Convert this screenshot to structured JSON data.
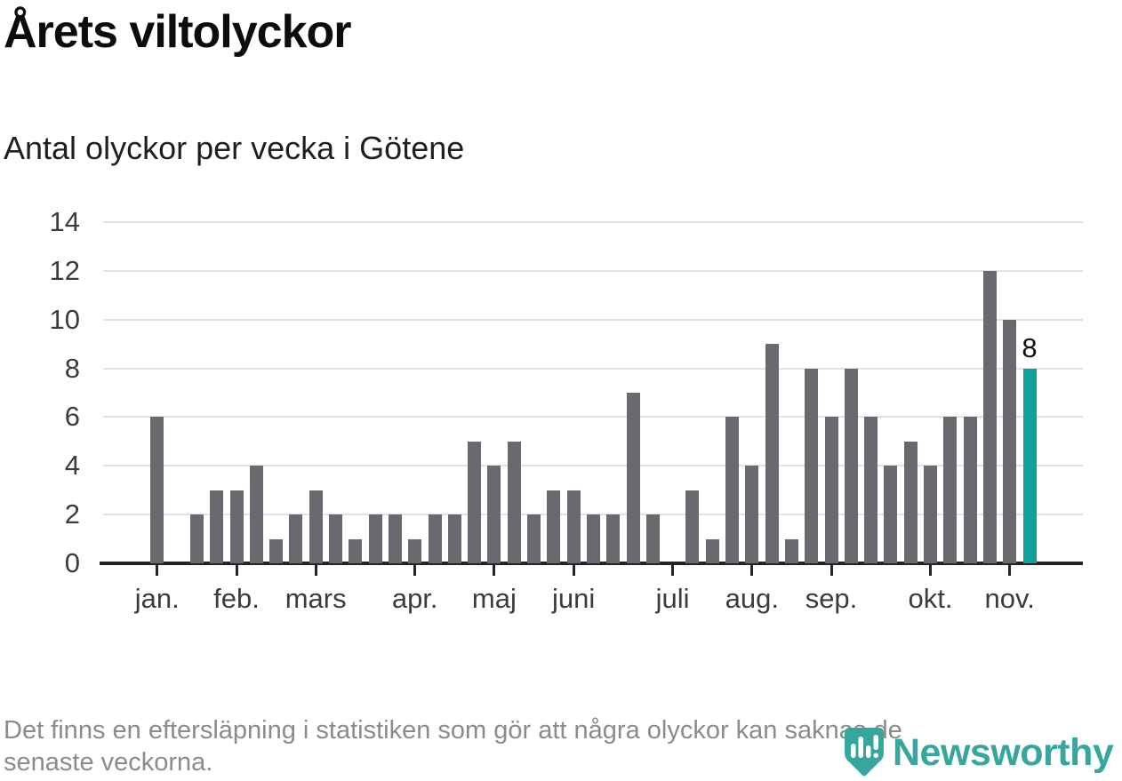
{
  "header": {
    "title": "Årets viltolyckor",
    "subtitle": "Antal olyckor per vecka i Götene"
  },
  "footer": {
    "note": "Det finns en eftersläpning i statistiken som gör att några olyckor kan saknas de\nsenaste veckorna."
  },
  "branding": {
    "name": "Newsworthy",
    "logo_icon": "newsworthy-pin-barchart-icon",
    "brand_color": "#35a79c"
  },
  "chart_data": {
    "type": "bar",
    "title": "Årets viltolyckor",
    "subtitle": "Antal olyckor per vecka i Götene",
    "xlabel": "",
    "ylabel": "",
    "x_unit": "vecka",
    "values": [
      6,
      0,
      2,
      3,
      3,
      4,
      1,
      2,
      3,
      2,
      1,
      2,
      2,
      1,
      2,
      2,
      5,
      4,
      5,
      2,
      3,
      3,
      2,
      2,
      7,
      2,
      0,
      3,
      1,
      6,
      4,
      9,
      1,
      8,
      6,
      8,
      6,
      4,
      5,
      4,
      6,
      6,
      12,
      10,
      8
    ],
    "month_ticks": [
      {
        "label": "jan.",
        "week": 1
      },
      {
        "label": "feb.",
        "week": 5
      },
      {
        "label": "mars",
        "week": 9
      },
      {
        "label": "apr.",
        "week": 14
      },
      {
        "label": "maj",
        "week": 18
      },
      {
        "label": "juni",
        "week": 22
      },
      {
        "label": "juli",
        "week": 27
      },
      {
        "label": "aug.",
        "week": 31
      },
      {
        "label": "sep.",
        "week": 35
      },
      {
        "label": "okt.",
        "week": 40
      },
      {
        "label": "nov.",
        "week": 44
      }
    ],
    "y_ticks": [
      0,
      2,
      4,
      6,
      8,
      10,
      12,
      14
    ],
    "ylim": [
      0,
      14
    ],
    "grid": true,
    "legend": null,
    "bar_color": "#696970",
    "highlight_color": "#0ea29b",
    "highlight_index": 44,
    "annotation": {
      "text": "8",
      "week": 45
    }
  }
}
